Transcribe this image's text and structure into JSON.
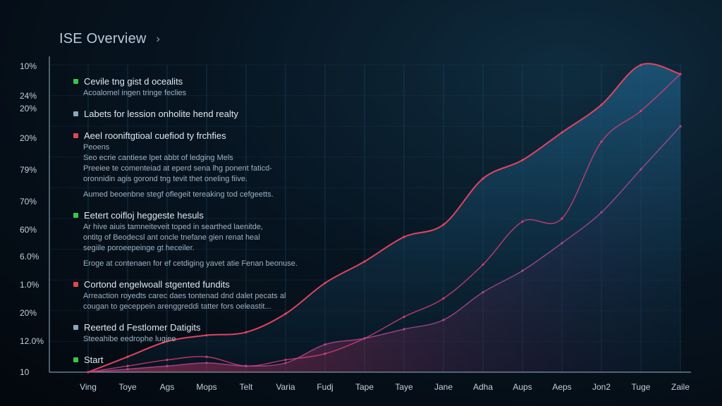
{
  "header": {
    "title": "ISE Overview",
    "chevron_icon": "chevron-right-icon"
  },
  "annotations": [
    {
      "color": "#37c84a",
      "heading": "Cevile tng gist d ocealits",
      "lines": [
        "Acoalomel ingen tringe feclies"
      ],
      "sub": ""
    },
    {
      "color": "#8fa6b8",
      "heading": "Labets for lession onholite hend realty",
      "lines": [],
      "sub": ""
    },
    {
      "color": "#e0484f",
      "heading": "Aeel rooniftgtioal cuefiod ty frchfies",
      "lines": [
        "Peoens",
        "Seo ecrie cantiese lpet abbt of ledging Mels",
        "Preeiee te comenteiad at eperd sena lhg ponent faticd-",
        "oronnidin agis gorond tng tevit thet oneling fiive."
      ],
      "sub": "Aumed beoenbne stegf oflegeit tereaking tod cefgeetts."
    },
    {
      "color": "#37c84a",
      "heading": "Eetert coifloj heggeste hesuls",
      "lines": [
        "Ar hive aiuis tamneiteveit toped in searthed laenitde,",
        "ontitg of Beodecsl ant oncle tnefane gien renat heal",
        "segiile poroeepeinge gt heceiler."
      ],
      "sub": "Eroge at contenaen for ef cetdiging yavet atie Fenan beonuse."
    },
    {
      "color": "#e0484f",
      "heading": "Cortond engelwoall stgented fundits",
      "lines": [
        "Arreaction royedts carec daes tontenad dnd dalet pecats al",
        "cougan to geceppein arenggreddi tatter fors oeleastit..."
      ],
      "sub": ""
    },
    {
      "color": "#8fa6b8",
      "heading": "Reerted d Festlomer Datigits",
      "lines": [
        "Steeahibe eedrophe lugiee"
      ],
      "sub": ""
    },
    {
      "color": "#37c84a",
      "heading": "Start",
      "lines": [],
      "sub": ""
    }
  ],
  "chart_data": {
    "type": "line",
    "y_tick_labels": [
      "10%",
      "24%",
      "20%",
      "20%",
      "79%",
      "70%",
      "60%",
      "6.0%",
      "1.0%",
      "20%",
      "12.0%",
      "10"
    ],
    "categories": [
      "Ving",
      "Toye",
      "Ags",
      "Mops",
      "Telt",
      "Varia",
      "Fudj",
      "Tape",
      "Taye",
      "Jane",
      "Adha",
      "Aups",
      "Aeps",
      "Jon2",
      "Tuge",
      "Zaile"
    ],
    "ylim": [
      0,
      100
    ],
    "grid": true,
    "series": [
      {
        "color": "#ee4462",
        "values": [
          0,
          5,
          10,
          12,
          13,
          19,
          29,
          36,
          44,
          48,
          63,
          69,
          78,
          87,
          100,
          97
        ]
      },
      {
        "color": "#dd3f78",
        "values": [
          0,
          2,
          4,
          5,
          2,
          4,
          6,
          11,
          18,
          24,
          35,
          49,
          50,
          75,
          85,
          97
        ]
      },
      {
        "color": "#b64a98",
        "values": [
          0,
          1,
          2,
          3,
          2,
          3,
          9,
          11,
          14,
          17,
          26,
          33,
          42,
          52,
          66,
          80
        ]
      }
    ]
  }
}
